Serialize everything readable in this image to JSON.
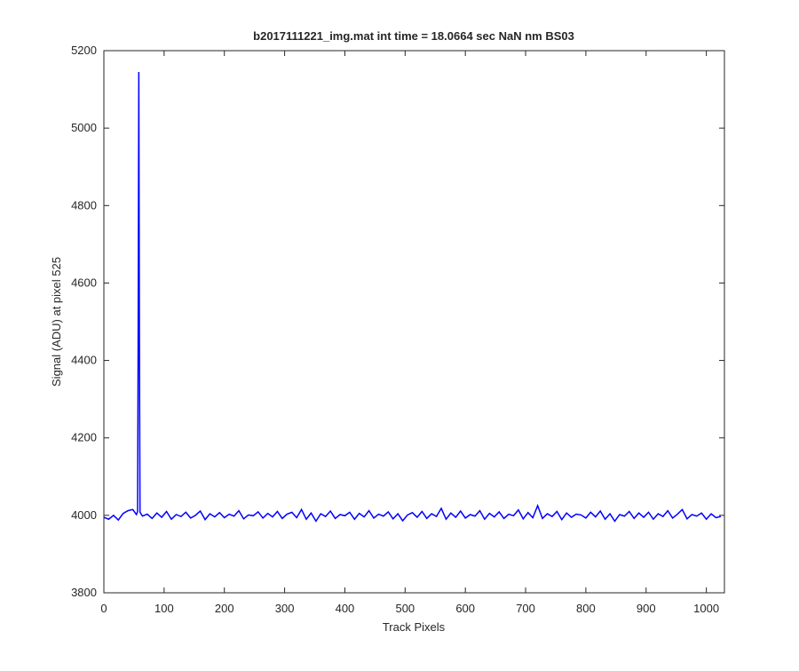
{
  "chart_data": {
    "type": "line",
    "title": "b2017111221_img.mat int time = 18.0664 sec  NaN nm BS03",
    "x_label": "Track Pixels",
    "y_label": "Signal (ADU) at pixel 525",
    "xlim": [
      0,
      1030
    ],
    "ylim": [
      3800,
      5200
    ],
    "xticks": [
      0,
      100,
      200,
      300,
      400,
      500,
      600,
      700,
      800,
      900,
      1000
    ],
    "yticks": [
      3800,
      4000,
      4200,
      4400,
      4600,
      4800,
      5000,
      5200
    ],
    "grid": false,
    "x": [
      0,
      8,
      16,
      24,
      32,
      40,
      48,
      54,
      56,
      57,
      58,
      59,
      60,
      64,
      72,
      80,
      88,
      96,
      104,
      112,
      120,
      128,
      136,
      144,
      152,
      160,
      168,
      176,
      184,
      192,
      200,
      208,
      216,
      224,
      232,
      240,
      248,
      256,
      264,
      272,
      280,
      288,
      296,
      304,
      312,
      320,
      328,
      336,
      344,
      352,
      360,
      368,
      376,
      384,
      392,
      400,
      408,
      416,
      424,
      432,
      440,
      448,
      456,
      464,
      472,
      480,
      488,
      496,
      504,
      512,
      520,
      528,
      536,
      544,
      552,
      560,
      568,
      576,
      584,
      592,
      600,
      608,
      616,
      624,
      632,
      640,
      648,
      656,
      664,
      672,
      680,
      688,
      696,
      704,
      712,
      720,
      728,
      736,
      744,
      752,
      760,
      768,
      776,
      784,
      792,
      800,
      808,
      816,
      824,
      832,
      840,
      848,
      856,
      864,
      872,
      880,
      888,
      896,
      904,
      912,
      920,
      928,
      936,
      944,
      952,
      960,
      968,
      976,
      984,
      992,
      1000,
      1008,
      1016,
      1024
    ],
    "series": [
      {
        "color": "#0000ff",
        "values": [
          3995,
          3990,
          4000,
          3988,
          4005,
          4012,
          4015,
          4002,
          4010,
          4500,
          5145,
          4450,
          4008,
          3998,
          4003,
          3992,
          4006,
          3995,
          4010,
          3990,
          4002,
          3997,
          4008,
          3993,
          4000,
          4011,
          3989,
          4004,
          3996,
          4007,
          3994,
          4003,
          3998,
          4012,
          3991,
          4001,
          3999,
          4009,
          3993,
          4005,
          3996,
          4010,
          3992,
          4003,
          4008,
          3994,
          4015,
          3990,
          4006,
          3985,
          4004,
          3997,
          4011,
          3992,
          4002,
          3999,
          4008,
          3990,
          4005,
          3996,
          4012,
          3993,
          4003,
          3998,
          4009,
          3991,
          4004,
          3986,
          4001,
          4007,
          3995,
          4010,
          3992,
          4004,
          3997,
          4018,
          3990,
          4006,
          3995,
          4011,
          3993,
          4002,
          3998,
          4012,
          3990,
          4005,
          3996,
          4009,
          3992,
          4003,
          3999,
          4014,
          3991,
          4007,
          3994,
          4025,
          3992,
          4004,
          3997,
          4010,
          3989,
          4006,
          3995,
          4003,
          4001,
          3993,
          4008,
          3996,
          4011,
          3990,
          4004,
          3985,
          4002,
          3998,
          4010,
          3992,
          4006,
          3995,
          4008,
          3990,
          4004,
          3997,
          4012,
          3993,
          4003,
          4015,
          3991,
          4002,
          3998,
          4006,
          3990,
          4004,
          3994,
          3997
        ]
      }
    ]
  }
}
